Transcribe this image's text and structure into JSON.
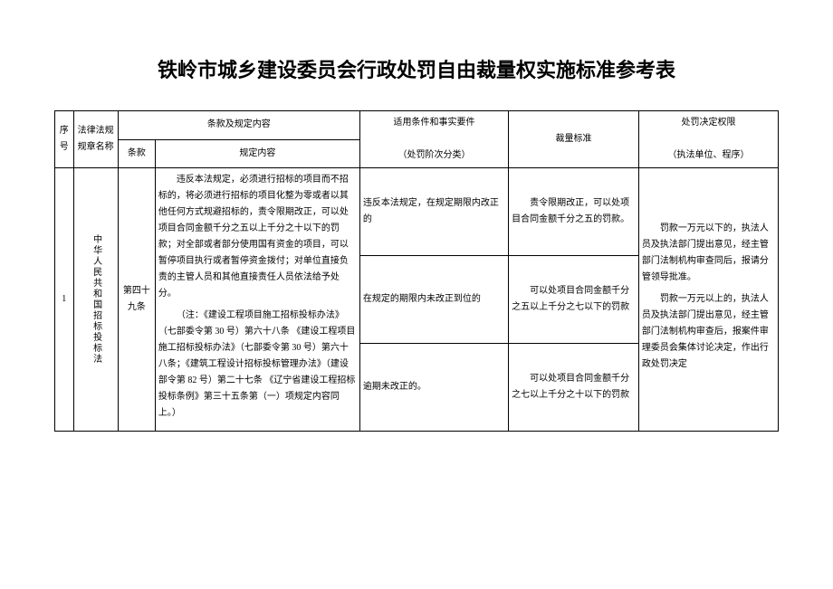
{
  "title": "铁岭市城乡建设委员会行政处罚自由裁量权实施标准参考表",
  "header": {
    "seq": "序号",
    "law": "法律法规规章名称",
    "clause_group": "条款及规定内容",
    "clause": "条款",
    "content": "规定内容",
    "condition": "适用条件和事实要件",
    "condition_sub": "（处罚阶次分类）",
    "standard": "裁量标准",
    "authority": "处罚决定权限",
    "authority_sub": "（执法单位、程序）"
  },
  "row1": {
    "seq": "1",
    "law": "中华人民共和国招标投标法",
    "clause": "第四十九条",
    "content_p1": "违反本法规定，必须进行招标的项目而不招标的，将必须进行招标的项目化整为零或者以其他任何方式规避招标的，责令限期改正，可以处项目合同金额千分之五以上千分之十以下的罚款；对全部或者部分使用国有资金的项目，可以暂停项目执行或者暂停资金拨付；对单位直接负责的主管人员和其他直接责任人员依法给予处分。",
    "content_p2": "（注：《建设工程项目施工招标投标办法》（七部委令第 30 号）第六十八条 《建设工程项目施工招标投标办法》（七部委令第 30 号）第六十八条；《建筑工程设计招标投标管理办法》（建设部令第 82 号）第二十七条 《辽宁省建设工程招标投标条例》第三十五条第（一）项规定内容同上。）",
    "cond1": "违反本法规定，在规定期限内改正的",
    "std1": "责令限期改正，可以处项目合同金额千分之五的罚款。",
    "cond2": "在规定的期限内未改正到位的",
    "std2": "可以处项目合同金额千分之五以上千分之七以下的罚款",
    "cond3": "逾期未改正的。",
    "std3": "可以处项目合同金额千分之七以上千分之十以下的罚款",
    "authority_p1": "罚款一万元以下的，执法人员及执法部门提出意见，经主管部门法制机构审查同后，报请分管领导批准。",
    "authority_p2": "罚款一万元以上的，执法人员及执法部门提出意见，经主管部门法制机构审查后，报案件审理委员会集体讨论决定，作出行政处罚决定"
  }
}
